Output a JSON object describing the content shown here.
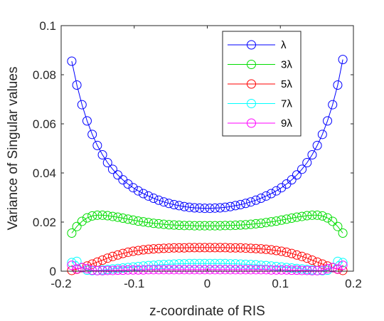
{
  "chart_data": {
    "type": "line",
    "title": "",
    "xlabel": "z-coordinate of RIS",
    "ylabel": "Variance of Singular values",
    "xlim": [
      -0.2,
      0.2
    ],
    "ylim": [
      0,
      0.1
    ],
    "xticks": [
      "-0.2",
      "-0.1",
      "0",
      "0.1",
      "0.2"
    ],
    "yticks": [
      "0",
      "0.02",
      "0.04",
      "0.06",
      "0.08",
      "0.1"
    ],
    "grid": false,
    "legend_position": "top-right",
    "markers": "open-circle",
    "x": [
      -0.1855,
      -0.1785,
      -0.1715,
      -0.1645,
      -0.1575,
      -0.1505,
      -0.1435,
      -0.1365,
      -0.1295,
      -0.1225,
      -0.1155,
      -0.1085,
      -0.1015,
      -0.0945,
      -0.0875,
      -0.0805,
      -0.0735,
      -0.0665,
      -0.0595,
      -0.0525,
      -0.0455,
      -0.0385,
      -0.0315,
      -0.0245,
      -0.0175,
      -0.0105,
      -0.0035,
      0.0035,
      0.0105,
      0.0175,
      0.0245,
      0.0315,
      0.0385,
      0.0455,
      0.0525,
      0.0595,
      0.0665,
      0.0735,
      0.0805,
      0.0875,
      0.0945,
      0.1015,
      0.1085,
      0.1155,
      0.1225,
      0.1295,
      0.1365,
      0.1435,
      0.1505,
      0.1575,
      0.1645,
      0.1715,
      0.1785,
      0.1855
    ],
    "series": [
      {
        "name": "λ",
        "color": "#0000ff",
        "values": [
          0.0855,
          0.0758,
          0.0678,
          0.0612,
          0.0557,
          0.0512,
          0.0474,
          0.0442,
          0.0415,
          0.0392,
          0.0372,
          0.0355,
          0.034,
          0.0327,
          0.0316,
          0.0306,
          0.0297,
          0.0289,
          0.0282,
          0.0276,
          0.0271,
          0.0267,
          0.0263,
          0.026,
          0.0258,
          0.0257,
          0.0256,
          0.0256,
          0.0257,
          0.0258,
          0.026,
          0.0263,
          0.0267,
          0.0271,
          0.0276,
          0.0282,
          0.0289,
          0.0297,
          0.0306,
          0.0316,
          0.0327,
          0.034,
          0.0355,
          0.0372,
          0.0392,
          0.0415,
          0.0442,
          0.0474,
          0.0512,
          0.0557,
          0.0612,
          0.0678,
          0.0758,
          0.0862
        ]
      },
      {
        "name": "3λ",
        "color": "#00dd00",
        "values": [
          0.0155,
          0.0182,
          0.0203,
          0.0217,
          0.0225,
          0.0228,
          0.0228,
          0.0226,
          0.0223,
          0.022,
          0.0216,
          0.0212,
          0.0208,
          0.0204,
          0.0201,
          0.0198,
          0.0195,
          0.0193,
          0.0191,
          0.0189,
          0.0188,
          0.0187,
          0.0186,
          0.0186,
          0.0185,
          0.0185,
          0.0185,
          0.0185,
          0.0185,
          0.0185,
          0.0186,
          0.0186,
          0.0187,
          0.0188,
          0.0189,
          0.0191,
          0.0193,
          0.0195,
          0.0198,
          0.0201,
          0.0204,
          0.0208,
          0.0212,
          0.0216,
          0.022,
          0.0223,
          0.0226,
          0.0228,
          0.0228,
          0.0225,
          0.0217,
          0.0203,
          0.0182,
          0.0155
        ]
      },
      {
        "name": "5λ",
        "color": "#ff0000",
        "values": [
          0.0003,
          0.0008,
          0.0014,
          0.0021,
          0.0029,
          0.0037,
          0.0045,
          0.0053,
          0.006,
          0.0066,
          0.0072,
          0.0077,
          0.0081,
          0.0084,
          0.0087,
          0.0089,
          0.0091,
          0.0092,
          0.0093,
          0.0094,
          0.0095,
          0.0095,
          0.0095,
          0.0096,
          0.0096,
          0.0096,
          0.0096,
          0.0096,
          0.0096,
          0.0096,
          0.0096,
          0.0095,
          0.0095,
          0.0095,
          0.0094,
          0.0093,
          0.0092,
          0.0091,
          0.0089,
          0.0087,
          0.0084,
          0.0081,
          0.0077,
          0.0072,
          0.0066,
          0.006,
          0.0053,
          0.0045,
          0.0037,
          0.0029,
          0.0021,
          0.0014,
          0.0008,
          0.0003
        ]
      },
      {
        "name": "7λ",
        "color": "#00ffff",
        "values": [
          0.0035,
          0.004,
          0.0015,
          0.0004,
          0.0002,
          0.0003,
          0.0005,
          0.0007,
          0.0009,
          0.0011,
          0.0013,
          0.0015,
          0.0017,
          0.0019,
          0.0021,
          0.0023,
          0.0024,
          0.0026,
          0.0027,
          0.0028,
          0.0029,
          0.003,
          0.003,
          0.0031,
          0.0031,
          0.0031,
          0.0031,
          0.0031,
          0.0031,
          0.0031,
          0.0031,
          0.003,
          0.003,
          0.0029,
          0.0028,
          0.0027,
          0.0026,
          0.0024,
          0.0023,
          0.0021,
          0.0019,
          0.0017,
          0.0015,
          0.0013,
          0.0011,
          0.0009,
          0.0007,
          0.0005,
          0.0003,
          0.0002,
          0.0004,
          0.0015,
          0.004,
          0.0035
        ]
      },
      {
        "name": "9λ",
        "color": "#ff00ff",
        "values": [
          0.0024,
          0.0009,
          0.0015,
          0.001,
          0.0004,
          0.0002,
          0.0002,
          0.0003,
          0.0003,
          0.0004,
          0.0004,
          0.0005,
          0.0005,
          0.0005,
          0.0005,
          0.0006,
          0.0006,
          0.0006,
          0.0006,
          0.0006,
          0.0006,
          0.0006,
          0.0006,
          0.0006,
          0.0006,
          0.0006,
          0.0006,
          0.0006,
          0.0006,
          0.0006,
          0.0006,
          0.0006,
          0.0006,
          0.0006,
          0.0006,
          0.0006,
          0.0006,
          0.0006,
          0.0006,
          0.0005,
          0.0005,
          0.0005,
          0.0005,
          0.0004,
          0.0004,
          0.0003,
          0.0003,
          0.0002,
          0.0002,
          0.0004,
          0.001,
          0.0015,
          0.0009,
          0.0024
        ]
      }
    ]
  }
}
